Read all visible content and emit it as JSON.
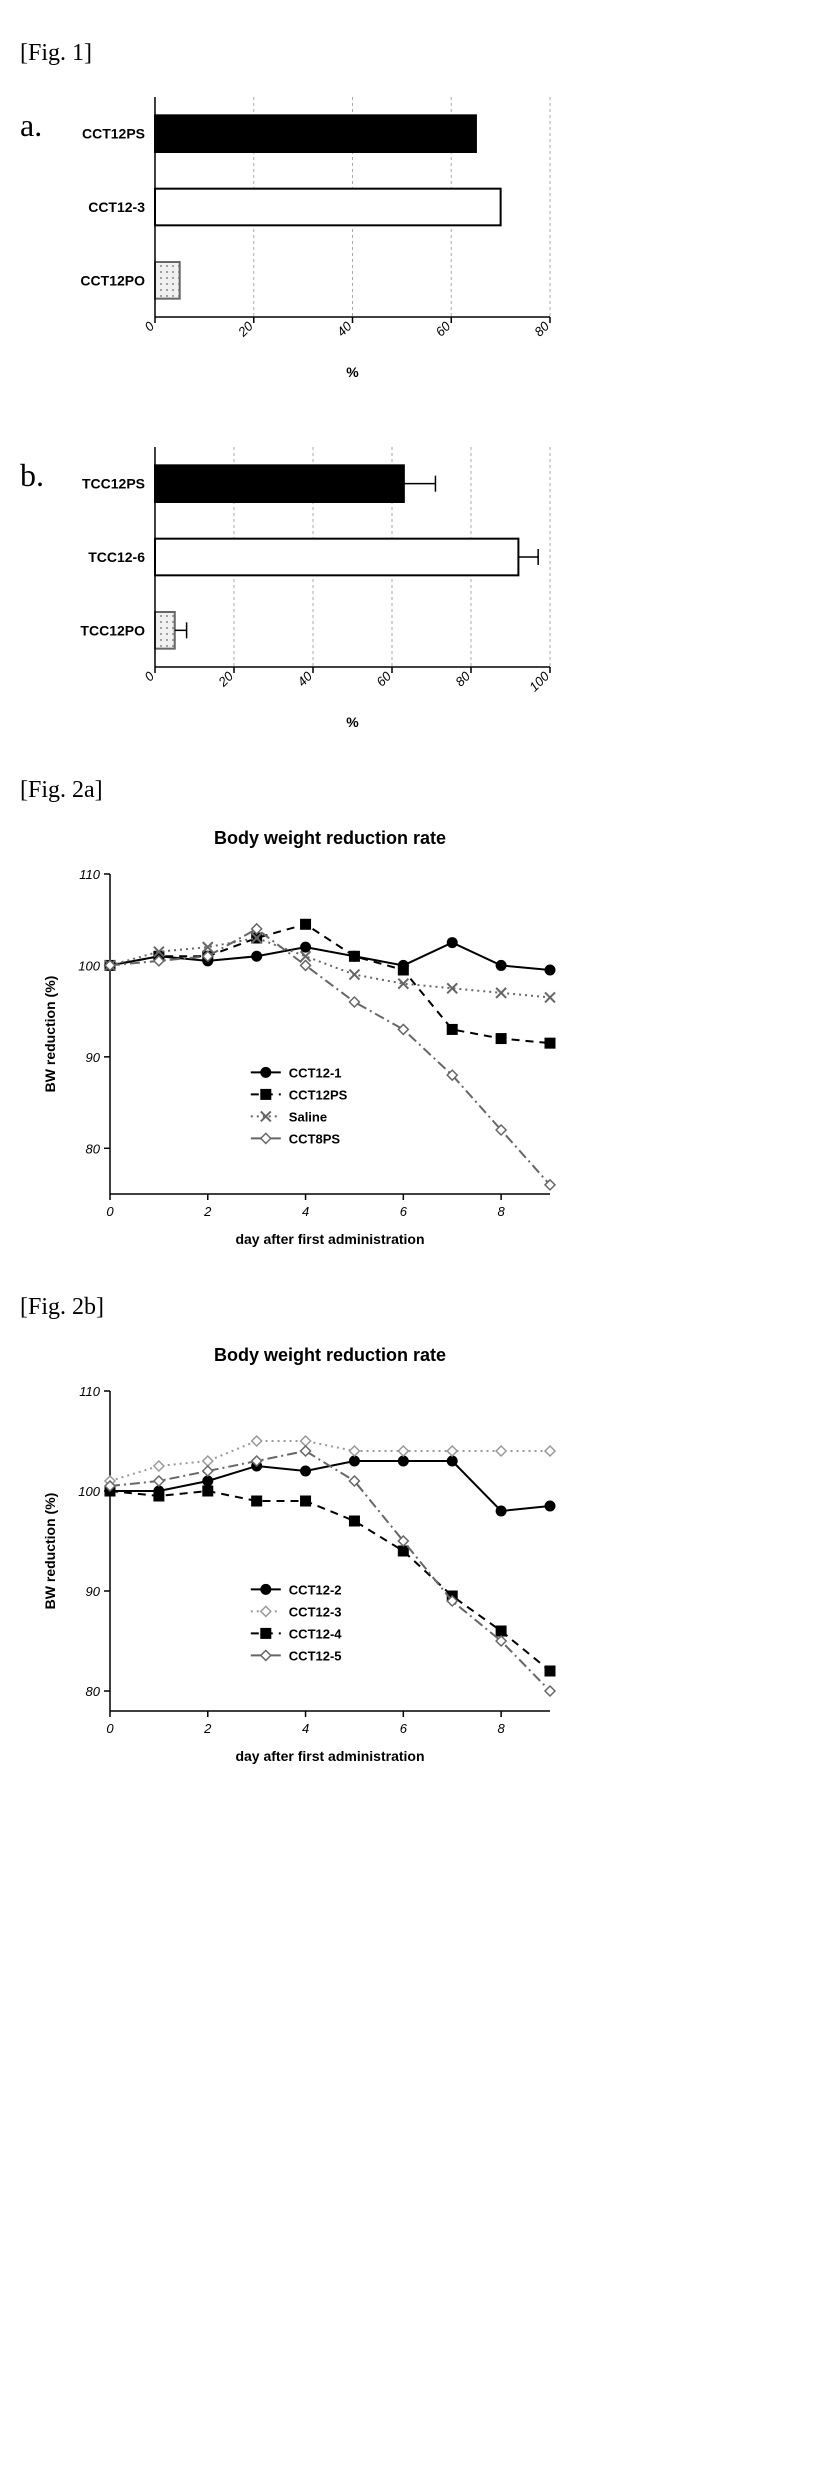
{
  "fig1": {
    "label": "[Fig. 1]",
    "panelA": {
      "label": "a.",
      "type": "bar",
      "orientation": "horizontal",
      "xlabel": "%",
      "xlim": [
        0,
        80
      ],
      "xtick_step": 20,
      "background_color": "#ffffff",
      "bar_width": 0.5,
      "series": [
        {
          "category": "CCT12PS",
          "value": 65,
          "fill": "#000000",
          "stroke": "#000000",
          "pattern": "solid",
          "error": null
        },
        {
          "category": "CCT12-3",
          "value": 70,
          "fill": "#ffffff",
          "stroke": "#000000",
          "pattern": "none",
          "error": null
        },
        {
          "category": "CCT12PO",
          "value": 5,
          "fill": "#dddddd",
          "stroke": "#666666",
          "pattern": "dots",
          "error": null
        }
      ]
    },
    "panelB": {
      "label": "b.",
      "type": "bar",
      "orientation": "horizontal",
      "xlabel": "%",
      "xlim": [
        0,
        100
      ],
      "xtick_step": 20,
      "background_color": "#ffffff",
      "bar_width": 0.5,
      "series": [
        {
          "category": "TCC12PS",
          "value": 63,
          "fill": "#000000",
          "stroke": "#000000",
          "pattern": "solid",
          "error": 8
        },
        {
          "category": "TCC12-6",
          "value": 92,
          "fill": "#ffffff",
          "stroke": "#000000",
          "pattern": "none",
          "error": 5
        },
        {
          "category": "TCC12PO",
          "value": 5,
          "fill": "#dddddd",
          "stroke": "#666666",
          "pattern": "dots",
          "error": 3
        }
      ]
    }
  },
  "fig2a": {
    "label": "[Fig. 2a]",
    "type": "line",
    "title": "Body weight reduction rate",
    "xlabel": "day after first administration",
    "ylabel": "BW reduction (%)",
    "xlim": [
      0,
      9
    ],
    "ylim": [
      75,
      110
    ],
    "xticks": [
      0,
      2,
      4,
      6,
      8
    ],
    "yticks": [
      80,
      90,
      100,
      110
    ],
    "background_color": "#ffffff",
    "title_fontsize": 18,
    "label_fontsize": 14,
    "legend_pos": "inside-lower-center",
    "series": [
      {
        "name": "CCT12-1",
        "marker": "circle-filled",
        "dash": "none",
        "color": "#000000",
        "x": [
          0,
          1,
          2,
          3,
          4,
          5,
          6,
          7,
          8,
          9
        ],
        "y": [
          100,
          101,
          100.5,
          101,
          102,
          101,
          100,
          102.5,
          100,
          99.5
        ]
      },
      {
        "name": "CCT12PS",
        "marker": "square-filled",
        "dash": "dash",
        "color": "#000000",
        "x": [
          0,
          1,
          2,
          3,
          4,
          5,
          6,
          7,
          8,
          9
        ],
        "y": [
          100,
          101,
          101,
          103,
          104.5,
          101,
          99.5,
          93,
          92,
          91.5
        ]
      },
      {
        "name": "Saline",
        "marker": "x",
        "dash": "dot",
        "color": "#666666",
        "x": [
          0,
          1,
          2,
          3,
          4,
          5,
          6,
          7,
          8,
          9
        ],
        "y": [
          100,
          101.5,
          102,
          103,
          101,
          99,
          98,
          97.5,
          97,
          96.5
        ]
      },
      {
        "name": "CCT8PS",
        "marker": "diamond-open",
        "dash": "dashdot",
        "color": "#666666",
        "x": [
          0,
          1,
          2,
          3,
          4,
          5,
          6,
          7,
          8,
          9
        ],
        "y": [
          100,
          100.5,
          101,
          104,
          100,
          96,
          93,
          88,
          82,
          76
        ]
      }
    ]
  },
  "fig2b": {
    "label": "[Fig. 2b]",
    "type": "line",
    "title": "Body weight reduction rate",
    "xlabel": "day after first administration",
    "ylabel": "BW reduction (%)",
    "xlim": [
      0,
      9
    ],
    "ylim": [
      78,
      110
    ],
    "xticks": [
      0,
      2,
      4,
      6,
      8
    ],
    "yticks": [
      80,
      90,
      100,
      110
    ],
    "background_color": "#ffffff",
    "title_fontsize": 18,
    "label_fontsize": 14,
    "legend_pos": "inside-lower-center",
    "series": [
      {
        "name": "CCT12-2",
        "marker": "circle-filled",
        "dash": "none",
        "color": "#000000",
        "x": [
          0,
          1,
          2,
          3,
          4,
          5,
          6,
          7,
          8,
          9
        ],
        "y": [
          100,
          100,
          101,
          102.5,
          102,
          103,
          103,
          103,
          98,
          98.5
        ]
      },
      {
        "name": "CCT12-3",
        "marker": "diamond-open",
        "dash": "dot",
        "color": "#999999",
        "x": [
          0,
          1,
          2,
          3,
          4,
          5,
          6,
          7,
          8,
          9
        ],
        "y": [
          101,
          102.5,
          103,
          105,
          105,
          104,
          104,
          104,
          104,
          104
        ]
      },
      {
        "name": "CCT12-4",
        "marker": "square-filled",
        "dash": "dash",
        "color": "#000000",
        "x": [
          0,
          1,
          2,
          3,
          4,
          5,
          6,
          7,
          8,
          9
        ],
        "y": [
          100,
          99.5,
          100,
          99,
          99,
          97,
          94,
          89.5,
          86,
          82
        ]
      },
      {
        "name": "CCT12-5",
        "marker": "diamond-open",
        "dash": "dashdot",
        "color": "#666666",
        "x": [
          0,
          1,
          2,
          3,
          4,
          5,
          6,
          7,
          8,
          9
        ],
        "y": [
          100.5,
          101,
          102,
          103,
          104,
          101,
          95,
          89,
          85,
          80
        ]
      }
    ]
  }
}
